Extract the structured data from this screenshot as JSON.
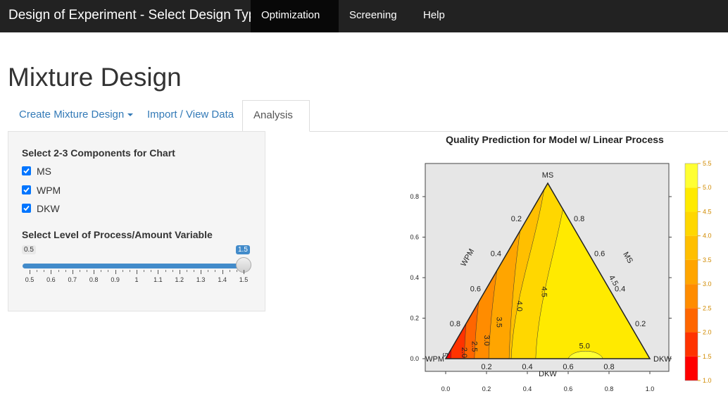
{
  "navbar": {
    "brand": "Design of Experiment - Select Design Type",
    "items": [
      {
        "label": "Optimization",
        "active": true,
        "dropdown": true
      },
      {
        "label": "Screening",
        "active": false,
        "dropdown": true
      },
      {
        "label": "Help",
        "active": false,
        "dropdown": false
      }
    ]
  },
  "page": {
    "title": "Mixture Design"
  },
  "tabs": [
    {
      "label": "Create Mixture Design",
      "active": false,
      "dropdown": true
    },
    {
      "label": "Import / View Data",
      "active": false,
      "dropdown": false
    },
    {
      "label": "Analysis",
      "active": true,
      "dropdown": true
    }
  ],
  "sidebar": {
    "components_label": "Select 2-3 Components for Chart",
    "components": [
      {
        "label": "MS",
        "checked": true
      },
      {
        "label": "WPM",
        "checked": true
      },
      {
        "label": "DKW",
        "checked": true
      }
    ],
    "slider_label": "Select Level of Process/Amount Variable",
    "slider": {
      "min": 0.5,
      "max": 1.5,
      "value": 1.5,
      "step": 0.1,
      "min_label": "0.5",
      "value_label": "1.5",
      "tick_labels": [
        "0.5",
        "0.6",
        "0.7",
        "0.8",
        "0.9",
        "1",
        "1.1",
        "1.2",
        "1.3",
        "1.4",
        "1.5"
      ]
    }
  },
  "chart_data": {
    "type": "contour",
    "title": "Quality Prediction for Model w/ Linear Process",
    "xlim": [
      0.0,
      1.0
    ],
    "ylim": [
      0.0,
      0.8
    ],
    "x_ticks": [
      "0.0",
      "0.2",
      "0.4",
      "0.6",
      "0.8",
      "1.0"
    ],
    "y_ticks": [
      "0.0",
      "0.2",
      "0.4",
      "0.6",
      "0.8"
    ],
    "vertices": {
      "top": "MS",
      "left": "WPM",
      "right": "DKW"
    },
    "edge_labels": {
      "left": "WPM",
      "right": "MS",
      "bottom": "DKW"
    },
    "left_edge_ticks": [
      "0.2",
      "0.4",
      "0.6",
      "0.8"
    ],
    "right_edge_ticks": [
      "0.8",
      "0.6",
      "0.4",
      "0.2"
    ],
    "bottom_edge_ticks": [
      "0.2",
      "0.4",
      "0.6",
      "0.8"
    ],
    "contour_levels": [
      "2.0",
      "2.5",
      "3.0",
      "3.5",
      "4.0",
      "4.5",
      "5.0"
    ],
    "edge_contour_label": "5",
    "colorbar": {
      "ticks": [
        "1.0",
        "1.5",
        "2.0",
        "2.5",
        "3.0",
        "3.5",
        "4.0",
        "4.5",
        "5.0",
        "5.5"
      ],
      "colors": [
        "#ff0000",
        "#ff3300",
        "#ff6600",
        "#ff8c00",
        "#ffa500",
        "#ffbf00",
        "#ffd700",
        "#ffea00",
        "#ffff33",
        "#ffffbb"
      ]
    }
  }
}
